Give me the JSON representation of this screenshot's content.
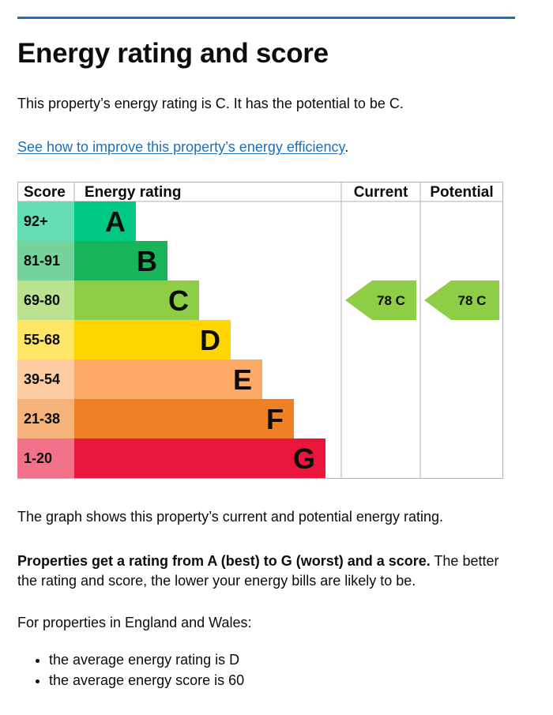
{
  "page": {
    "title": "Energy rating and score",
    "summary": "This property’s energy rating is C. It has the potential to be C.",
    "improve_link": "See how to improve this property’s energy efficiency",
    "improve_suffix": ".",
    "graph_explanation": "The graph shows this property’s current and potential energy rating.",
    "ratings_bold": "Properties get a rating from A (best) to G (worst) and a score.",
    "ratings_rest": " The better the rating and score, the lower your energy bills are likely to be.",
    "region_intro": "For properties in England and Wales:",
    "averages": [
      "the average energy rating is D",
      "the average energy score is 60"
    ]
  },
  "colors": {
    "link": "#1d70b8",
    "rule": "#1d70b8"
  },
  "chart_data": {
    "type": "table",
    "headers": {
      "score": "Score",
      "rating": "Energy rating",
      "current": "Current",
      "potential": "Potential"
    },
    "bands": [
      {
        "score": "92+",
        "letter": "A",
        "color": "#00c781",
        "score_bg": "#66dcb3"
      },
      {
        "score": "81-91",
        "letter": "B",
        "color": "#19b459",
        "score_bg": "#75d29b"
      },
      {
        "score": "69-80",
        "letter": "C",
        "color": "#8dce46",
        "score_bg": "#bbe290"
      },
      {
        "score": "55-68",
        "letter": "D",
        "color": "#ffd500",
        "score_bg": "#ffe666"
      },
      {
        "score": "39-54",
        "letter": "E",
        "color": "#fcaa65",
        "score_bg": "#fdcca3"
      },
      {
        "score": "21-38",
        "letter": "F",
        "color": "#ef8023",
        "score_bg": "#f5b37b"
      },
      {
        "score": "1-20",
        "letter": "G",
        "color": "#e9153b",
        "score_bg": "#f27389"
      }
    ],
    "current": {
      "score": 78,
      "letter": "C",
      "label": "78  C"
    },
    "potential": {
      "score": 78,
      "letter": "C",
      "label": "78  C"
    }
  }
}
